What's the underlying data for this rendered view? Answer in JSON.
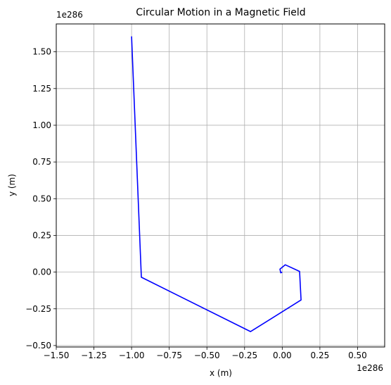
{
  "chart_data": {
    "type": "line",
    "title": "Circular Motion in a Magnetic Field",
    "xlabel": "x (m)",
    "ylabel": "y (m)",
    "x_offset_text": "1e286",
    "y_offset_text": "1e286",
    "xlim": [
      -1.5,
      0.68
    ],
    "ylim": [
      -0.51,
      1.69
    ],
    "x_ticks": [
      -1.5,
      -1.25,
      -1.0,
      -0.75,
      -0.5,
      -0.25,
      0.0,
      0.25,
      0.5
    ],
    "x_tick_labels": [
      "−1.50",
      "−1.25",
      "−1.00",
      "−0.75",
      "−0.50",
      "−0.25",
      "0.00",
      "0.25",
      "0.50"
    ],
    "y_ticks": [
      -0.5,
      -0.25,
      0.0,
      0.25,
      0.5,
      0.75,
      1.0,
      1.25,
      1.5
    ],
    "y_tick_labels": [
      "−0.50",
      "−0.25",
      "0.00",
      "0.25",
      "0.50",
      "0.75",
      "1.00",
      "1.25",
      "1.50"
    ],
    "grid": true,
    "series": [
      {
        "color": "#0000ff",
        "points": [
          [
            0.0,
            0.0
          ],
          [
            -0.01,
            -0.005
          ],
          [
            -0.015,
            0.02
          ],
          [
            0.02,
            0.05
          ],
          [
            0.115,
            0.005
          ],
          [
            0.125,
            -0.19
          ],
          [
            -0.21,
            -0.405
          ],
          [
            -0.935,
            -0.035
          ],
          [
            -1.0,
            1.605
          ]
        ]
      }
    ]
  }
}
